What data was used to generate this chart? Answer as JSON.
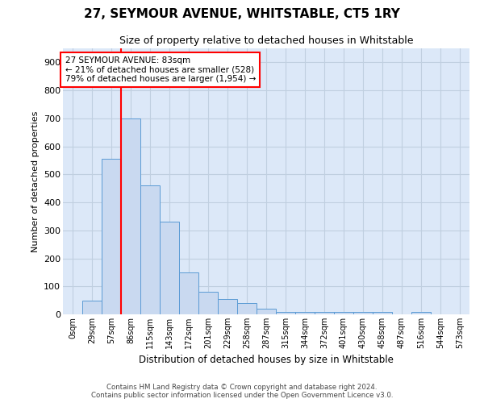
{
  "title": "27, SEYMOUR AVENUE, WHITSTABLE, CT5 1RY",
  "subtitle": "Size of property relative to detached houses in Whitstable",
  "xlabel": "Distribution of detached houses by size in Whitstable",
  "ylabel": "Number of detached properties",
  "bar_labels": [
    "0sqm",
    "29sqm",
    "57sqm",
    "86sqm",
    "115sqm",
    "143sqm",
    "172sqm",
    "201sqm",
    "229sqm",
    "258sqm",
    "287sqm",
    "315sqm",
    "344sqm",
    "372sqm",
    "401sqm",
    "430sqm",
    "458sqm",
    "487sqm",
    "516sqm",
    "544sqm",
    "573sqm"
  ],
  "bar_heights": [
    0,
    50,
    555,
    700,
    460,
    330,
    150,
    80,
    55,
    40,
    20,
    10,
    10,
    10,
    8,
    8,
    8,
    0,
    10,
    0,
    0
  ],
  "bar_color": "#c9d9f0",
  "bar_edge_color": "#5b9bd5",
  "ylim": [
    0,
    950
  ],
  "yticks": [
    0,
    100,
    200,
    300,
    400,
    500,
    600,
    700,
    800,
    900
  ],
  "vline_x": 2.5,
  "annotation_text": "27 SEYMOUR AVENUE: 83sqm\n← 21% of detached houses are smaller (528)\n79% of detached houses are larger (1,954) →",
  "annotation_box_color": "white",
  "annotation_box_edgecolor": "red",
  "vline_color": "red",
  "grid_color": "#c0cfe0",
  "background_color": "#dce8f8",
  "footer_line1": "Contains HM Land Registry data © Crown copyright and database right 2024.",
  "footer_line2": "Contains public sector information licensed under the Open Government Licence v3.0."
}
